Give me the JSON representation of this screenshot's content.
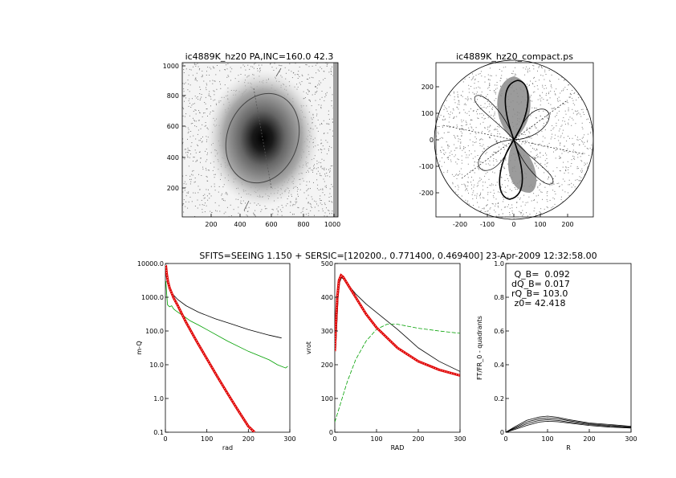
{
  "caption": "SFITS=SEEING 1.150 + SERSIC=[120200., 0.771400, 0.469400]  23-Apr-2009 12:32:58.00",
  "image_panel": {
    "title": "ic4889K_hz20 PA,INC=160.0 42.3",
    "x_ticks": [
      "200",
      "400",
      "600",
      "800",
      "1000"
    ],
    "y_ticks": [
      "200",
      "400",
      "600",
      "800",
      "1000"
    ]
  },
  "polar_panel": {
    "title": "ic4889K_hz20_compact.ps",
    "x_ticks": [
      "-200",
      "-100",
      "0",
      "100",
      "200"
    ],
    "y_ticks": [
      "-200",
      "-100",
      "0",
      "100",
      "200"
    ]
  },
  "info": {
    "q": " Q_B=  0.092",
    "dq": "dQ_B=  0.017",
    "rq": "rQ_B=  103.0",
    "z0": " z0= 42.418"
  },
  "colors": {
    "model": "#e00000",
    "observed": "#00a000",
    "line": "#000000",
    "pixels": "#7a7a7a"
  },
  "chart_data": [
    {
      "type": "line",
      "name": "mass-profile",
      "xlabel": "rad",
      "ylabel": "m-Q",
      "log_y": true,
      "xlim": [
        0,
        300
      ],
      "ylim": [
        0.1,
        10000
      ],
      "x_ticks": [
        "0",
        "100",
        "200",
        "300"
      ],
      "y_ticks": [
        "0.1",
        "1.0",
        "10.0",
        "100.0",
        "1000.0",
        "10000.0"
      ],
      "series": [
        {
          "color": "#000000",
          "x": [
            3,
            10,
            20,
            30,
            50,
            80,
            120,
            160,
            200,
            250,
            280
          ],
          "y": [
            3000,
            1800,
            1150,
            850,
            560,
            360,
            230,
            160,
            110,
            75,
            62
          ]
        },
        {
          "color": "#00a000",
          "x": [
            1,
            5,
            10,
            15,
            20,
            25,
            30,
            40,
            60,
            80,
            100,
            150,
            200,
            250,
            270,
            290,
            295
          ],
          "y": [
            3000,
            600,
            520,
            560,
            450,
            400,
            360,
            300,
            200,
            150,
            110,
            50,
            25,
            14,
            10,
            8,
            9
          ]
        },
        {
          "color": "#e00000",
          "x": [
            1,
            3,
            6,
            10,
            20,
            30,
            50,
            75,
            100,
            125,
            150,
            175,
            200,
            215
          ],
          "y": [
            9000,
            5000,
            3000,
            1900,
            950,
            560,
            180,
            50,
            15,
            4.5,
            1.4,
            0.45,
            0.15,
            0.1
          ]
        }
      ]
    },
    {
      "type": "line",
      "name": "rotation-curve",
      "xlabel": "RAD",
      "ylabel": "vrot",
      "xlim": [
        0,
        300
      ],
      "ylim": [
        0,
        500
      ],
      "x_ticks": [
        "0",
        "100",
        "200",
        "300"
      ],
      "y_ticks": [
        "0",
        "100",
        "200",
        "300",
        "400",
        "500"
      ],
      "series": [
        {
          "color": "#000000",
          "x": [
            2,
            5,
            8,
            12,
            16,
            20,
            30,
            50,
            75,
            100,
            150,
            200,
            250,
            300
          ],
          "y": [
            240,
            320,
            400,
            445,
            458,
            455,
            440,
            410,
            380,
            355,
            305,
            250,
            210,
            180
          ]
        },
        {
          "color": "#00a000",
          "x": [
            0,
            10,
            20,
            30,
            50,
            75,
            100,
            125,
            150,
            200,
            250,
            300
          ],
          "y": [
            30,
            70,
            110,
            150,
            215,
            270,
            305,
            320,
            320,
            308,
            300,
            293
          ]
        },
        {
          "color": "#e00000",
          "x": [
            0,
            3,
            6,
            10,
            15,
            20,
            30,
            50,
            75,
            100,
            150,
            200,
            250,
            300
          ],
          "y": [
            240,
            330,
            400,
            450,
            465,
            460,
            440,
            400,
            350,
            310,
            250,
            210,
            185,
            168
          ]
        }
      ]
    },
    {
      "type": "line",
      "name": "fourier-ratio",
      "xlabel": "R",
      "ylabel": "FT/FR_0 - quadrants",
      "xlim": [
        0,
        300
      ],
      "ylim": [
        0,
        1
      ],
      "x_ticks": [
        "0",
        "100",
        "200",
        "300"
      ],
      "y_ticks": [
        "0",
        "0.2",
        "0.4",
        "0.6",
        "0.8",
        "1.0"
      ],
      "series": [
        {
          "color": "#000000",
          "x": [
            0,
            20,
            50,
            80,
            100,
            125,
            150,
            200,
            250,
            300
          ],
          "y": [
            0,
            0.03,
            0.07,
            0.09,
            0.095,
            0.088,
            0.075,
            0.055,
            0.045,
            0.035
          ]
        },
        {
          "color": "#000000",
          "x": [
            0,
            20,
            50,
            80,
            100,
            125,
            150,
            200,
            250,
            300
          ],
          "y": [
            0,
            0.025,
            0.06,
            0.08,
            0.085,
            0.08,
            0.068,
            0.05,
            0.04,
            0.03
          ]
        },
        {
          "color": "#000000",
          "x": [
            0,
            20,
            50,
            80,
            100,
            125,
            150,
            200,
            250,
            300
          ],
          "y": [
            0,
            0.02,
            0.05,
            0.07,
            0.075,
            0.07,
            0.06,
            0.045,
            0.035,
            0.028
          ]
        },
        {
          "color": "#000000",
          "x": [
            0,
            20,
            50,
            80,
            100,
            125,
            150,
            200,
            250,
            300
          ],
          "y": [
            0,
            0.015,
            0.04,
            0.06,
            0.065,
            0.062,
            0.055,
            0.04,
            0.03,
            0.025
          ]
        }
      ]
    }
  ]
}
